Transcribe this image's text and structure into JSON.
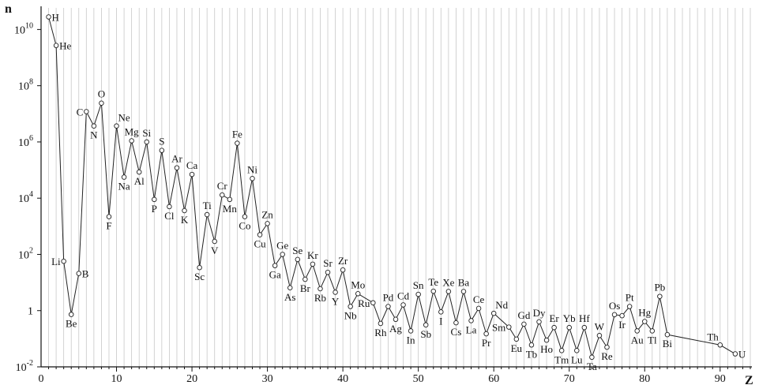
{
  "chart_data": {
    "type": "line",
    "xlabel": "Z",
    "ylabel": "n",
    "xlim": [
      0,
      94
    ],
    "ylim_log10": [
      -2,
      10.6
    ],
    "y_scale": "log",
    "grid": "vertical lines at every integer Z",
    "x_ticks": [
      {
        "value": 0,
        "label": "0"
      },
      {
        "value": 10,
        "label": "10"
      },
      {
        "value": 20,
        "label": "20"
      },
      {
        "value": 30,
        "label": "30"
      },
      {
        "value": 40,
        "label": "40"
      },
      {
        "value": 50,
        "label": "50"
      },
      {
        "value": 60,
        "label": "60"
      },
      {
        "value": 70,
        "label": "70"
      },
      {
        "value": 80,
        "label": "80"
      },
      {
        "value": 90,
        "label": "90"
      }
    ],
    "y_ticks": [
      {
        "value": 0.01,
        "base": "10",
        "exp": "-2"
      },
      {
        "value": 1,
        "base": "1",
        "exp": ""
      },
      {
        "value": 100.0,
        "base": "10",
        "exp": "2"
      },
      {
        "value": 10000.0,
        "base": "10",
        "exp": "4"
      },
      {
        "value": 1000000.0,
        "base": "10",
        "exp": "6"
      },
      {
        "value": 100000000.0,
        "base": "10",
        "exp": "8"
      },
      {
        "value": 10000000000.0,
        "base": "10",
        "exp": "10"
      }
    ],
    "series": [
      {
        "name": "",
        "points": [
          {
            "z": 1,
            "el": "H",
            "n": 28000000000.0,
            "lp": "r"
          },
          {
            "z": 2,
            "el": "He",
            "n": 2700000000.0,
            "lp": "r"
          },
          {
            "z": 3,
            "el": "Li",
            "n": 57,
            "lp": "l"
          },
          {
            "z": 4,
            "el": "Be",
            "n": 0.73,
            "lp": "b"
          },
          {
            "z": 5,
            "el": "B",
            "n": 21,
            "lp": "r"
          },
          {
            "z": 6,
            "el": "C",
            "n": 12000000.0,
            "lp": "l"
          },
          {
            "z": 7,
            "el": "N",
            "n": 3700000.0,
            "lp": "b"
          },
          {
            "z": 8,
            "el": "O",
            "n": 24000000.0,
            "lp": "t"
          },
          {
            "z": 9,
            "el": "F",
            "n": 2200,
            "lp": "b"
          },
          {
            "z": 10,
            "el": "Ne",
            "n": 3700000.0,
            "lp": "tr"
          },
          {
            "z": 11,
            "el": "Na",
            "n": 56000,
            "lp": "b"
          },
          {
            "z": 12,
            "el": "Mg",
            "n": 1100000.0,
            "lp": "t"
          },
          {
            "z": 13,
            "el": "Al",
            "n": 85000,
            "lp": "b"
          },
          {
            "z": 14,
            "el": "Si",
            "n": 1000000.0,
            "lp": "t"
          },
          {
            "z": 15,
            "el": "P",
            "n": 9000,
            "lp": "b"
          },
          {
            "z": 16,
            "el": "S",
            "n": 500000,
            "lp": "t"
          },
          {
            "z": 17,
            "el": "Cl",
            "n": 5000,
            "lp": "b"
          },
          {
            "z": 18,
            "el": "Ar",
            "n": 120000,
            "lp": "t"
          },
          {
            "z": 19,
            "el": "K",
            "n": 3600,
            "lp": "b"
          },
          {
            "z": 20,
            "el": "Ca",
            "n": 70000,
            "lp": "t"
          },
          {
            "z": 21,
            "el": "Sc",
            "n": 34,
            "lp": "b"
          },
          {
            "z": 22,
            "el": "Ti",
            "n": 2600,
            "lp": "t"
          },
          {
            "z": 23,
            "el": "V",
            "n": 290,
            "lp": "b"
          },
          {
            "z": 24,
            "el": "Cr",
            "n": 13000,
            "lp": "t"
          },
          {
            "z": 25,
            "el": "Mn",
            "n": 9000,
            "lp": "b"
          },
          {
            "z": 26,
            "el": "Fe",
            "n": 900000,
            "lp": "t"
          },
          {
            "z": 27,
            "el": "Co",
            "n": 2200,
            "lp": "b"
          },
          {
            "z": 28,
            "el": "Ni",
            "n": 50000,
            "lp": "t"
          },
          {
            "z": 29,
            "el": "Cu",
            "n": 500,
            "lp": "b"
          },
          {
            "z": 30,
            "el": "Zn",
            "n": 1250,
            "lp": "t"
          },
          {
            "z": 31,
            "el": "Ga",
            "n": 40,
            "lp": "b"
          },
          {
            "z": 32,
            "el": "Ge",
            "n": 100,
            "lp": "t"
          },
          {
            "z": 33,
            "el": "As",
            "n": 6.5,
            "lp": "b"
          },
          {
            "z": 34,
            "el": "Se",
            "n": 66,
            "lp": "t"
          },
          {
            "z": 35,
            "el": "Br",
            "n": 13,
            "lp": "b"
          },
          {
            "z": 36,
            "el": "Kr",
            "n": 45,
            "lp": "t"
          },
          {
            "z": 37,
            "el": "Rb",
            "n": 6.0,
            "lp": "b"
          },
          {
            "z": 38,
            "el": "Sr",
            "n": 23,
            "lp": "t"
          },
          {
            "z": 39,
            "el": "Y",
            "n": 4.5,
            "lp": "b"
          },
          {
            "z": 40,
            "el": "Zr",
            "n": 28,
            "lp": "t"
          },
          {
            "z": 41,
            "el": "Nb",
            "n": 1.4,
            "lp": "b"
          },
          {
            "z": 42,
            "el": "Mo",
            "n": 4.0,
            "lp": "t"
          },
          {
            "z": 43,
            "el": "",
            "n": null,
            "lp": ""
          },
          {
            "z": 44,
            "el": "Ru",
            "n": 1.9,
            "lp": "l"
          },
          {
            "z": 45,
            "el": "Rh",
            "n": 0.35,
            "lp": "b"
          },
          {
            "z": 46,
            "el": "Pd",
            "n": 1.4,
            "lp": "t"
          },
          {
            "z": 47,
            "el": "Ag",
            "n": 0.49,
            "lp": "b"
          },
          {
            "z": 48,
            "el": "Cd",
            "n": 1.6,
            "lp": "t"
          },
          {
            "z": 49,
            "el": "In",
            "n": 0.19,
            "lp": "b"
          },
          {
            "z": 50,
            "el": "Sn",
            "n": 3.8,
            "lp": "t"
          },
          {
            "z": 51,
            "el": "Sb",
            "n": 0.31,
            "lp": "b"
          },
          {
            "z": 52,
            "el": "Te",
            "n": 4.9,
            "lp": "t"
          },
          {
            "z": 53,
            "el": "I",
            "n": 0.9,
            "lp": "b"
          },
          {
            "z": 54,
            "el": "Xe",
            "n": 4.8,
            "lp": "t"
          },
          {
            "z": 55,
            "el": "Cs",
            "n": 0.37,
            "lp": "b"
          },
          {
            "z": 56,
            "el": "Ba",
            "n": 4.8,
            "lp": "t"
          },
          {
            "z": 57,
            "el": "La",
            "n": 0.44,
            "lp": "b"
          },
          {
            "z": 58,
            "el": "Ce",
            "n": 1.2,
            "lp": "t"
          },
          {
            "z": 59,
            "el": "Pr",
            "n": 0.15,
            "lp": "b"
          },
          {
            "z": 60,
            "el": "Nd",
            "n": 0.8,
            "lp": "tr"
          },
          {
            "z": 61,
            "el": "",
            "n": null,
            "lp": ""
          },
          {
            "z": 62,
            "el": "Sm",
            "n": 0.26,
            "lp": "l"
          },
          {
            "z": 63,
            "el": "Eu",
            "n": 0.097,
            "lp": "b"
          },
          {
            "z": 64,
            "el": "Gd",
            "n": 0.33,
            "lp": "t"
          },
          {
            "z": 65,
            "el": "Tb",
            "n": 0.06,
            "lp": "b"
          },
          {
            "z": 66,
            "el": "Dy",
            "n": 0.4,
            "lp": "t"
          },
          {
            "z": 67,
            "el": "Ho",
            "n": 0.089,
            "lp": "b"
          },
          {
            "z": 68,
            "el": "Er",
            "n": 0.25,
            "lp": "t"
          },
          {
            "z": 69,
            "el": "Tm",
            "n": 0.038,
            "lp": "b"
          },
          {
            "z": 70,
            "el": "Yb",
            "n": 0.25,
            "lp": "t"
          },
          {
            "z": 71,
            "el": "Lu",
            "n": 0.038,
            "lp": "b"
          },
          {
            "z": 72,
            "el": "Hf",
            "n": 0.25,
            "lp": "t"
          },
          {
            "z": 73,
            "el": "Ta",
            "n": 0.022,
            "lp": "b"
          },
          {
            "z": 74,
            "el": "W",
            "n": 0.13,
            "lp": "t"
          },
          {
            "z": 75,
            "el": "Re",
            "n": 0.05,
            "lp": "b"
          },
          {
            "z": 76,
            "el": "Os",
            "n": 0.72,
            "lp": "t"
          },
          {
            "z": 77,
            "el": "Ir",
            "n": 0.66,
            "lp": "b"
          },
          {
            "z": 78,
            "el": "Pt",
            "n": 1.4,
            "lp": "t"
          },
          {
            "z": 79,
            "el": "Au",
            "n": 0.19,
            "lp": "b"
          },
          {
            "z": 80,
            "el": "Hg",
            "n": 0.41,
            "lp": "t"
          },
          {
            "z": 81,
            "el": "Tl",
            "n": 0.19,
            "lp": "b"
          },
          {
            "z": 82,
            "el": "Pb",
            "n": 3.2,
            "lp": "t"
          },
          {
            "z": 83,
            "el": "Bi",
            "n": 0.14,
            "lp": "b"
          },
          {
            "z": 90,
            "el": "Th",
            "n": 0.06,
            "lp": "tl"
          },
          {
            "z": 92,
            "el": "U",
            "n": 0.029,
            "lp": "r"
          }
        ]
      }
    ]
  }
}
